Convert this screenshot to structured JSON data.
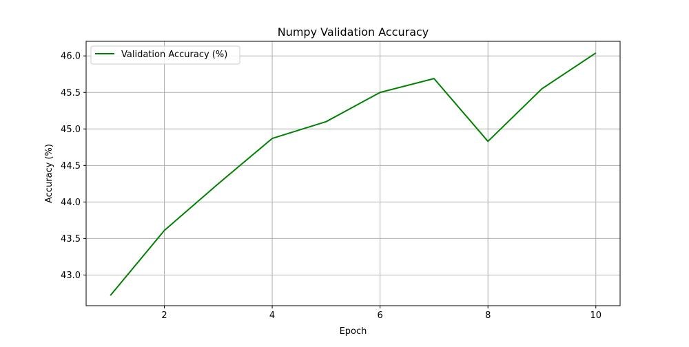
{
  "chart_data": {
    "type": "line",
    "title": "Numpy Validation Accuracy",
    "xlabel": "Epoch",
    "ylabel": "Accuracy (%)",
    "xlim": [
      0.55,
      10.45
    ],
    "ylim": [
      42.58,
      46.2
    ],
    "xticks": [
      2,
      4,
      6,
      8,
      10
    ],
    "yticks": [
      43.0,
      43.5,
      44.0,
      44.5,
      45.0,
      45.5,
      46.0
    ],
    "grid": true,
    "legend": {
      "placement": "upper-left",
      "entries": [
        "Validation Accuracy (%)"
      ]
    },
    "series": [
      {
        "name": "Validation Accuracy (%)",
        "color": "#008000",
        "x": [
          1,
          2,
          3,
          4,
          5,
          6,
          7,
          8,
          9,
          10
        ],
        "y": [
          42.72,
          43.61,
          44.25,
          44.87,
          45.1,
          45.5,
          45.69,
          44.83,
          45.55,
          46.04
        ]
      }
    ]
  }
}
